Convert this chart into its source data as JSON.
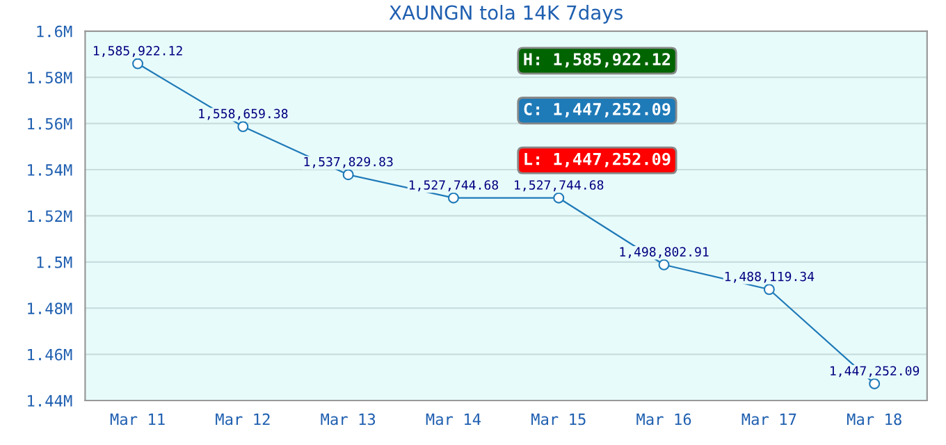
{
  "chart_data": {
    "type": "line",
    "title": "XAUNGN tola 14K 7days",
    "categories": [
      "Mar 11",
      "Mar 12",
      "Mar 13",
      "Mar 14",
      "Mar 15",
      "Mar 16",
      "Mar 17",
      "Mar 18"
    ],
    "series": [
      {
        "color": "#1f7ab8",
        "values": [
          1585922.12,
          1558659.38,
          1537829.83,
          1527744.68,
          1527744.68,
          1498802.91,
          1488119.34,
          1447252.09
        ],
        "value_labels": [
          "1,585,922.12",
          "1,558,659.38",
          "1,537,829.83",
          "1,527,744.68",
          "1,527,744.68",
          "1,498,802.91",
          "1,488,119.34",
          "1,447,252.09"
        ]
      }
    ],
    "ylim": [
      1440000,
      1600000
    ],
    "yticks": [
      {
        "value": 1440000,
        "label": "1.44M"
      },
      {
        "value": 1460000,
        "label": "1.46M"
      },
      {
        "value": 1480000,
        "label": "1.48M"
      },
      {
        "value": 1500000,
        "label": "1.5M"
      },
      {
        "value": 1520000,
        "label": "1.52M"
      },
      {
        "value": 1540000,
        "label": "1.54M"
      },
      {
        "value": 1560000,
        "label": "1.56M"
      },
      {
        "value": 1580000,
        "label": "1.58M"
      },
      {
        "value": 1600000,
        "label": "1.6M"
      }
    ],
    "annotations": [
      "H: 1,585,922.12",
      "C: 1,447,252.09",
      "L: 1,447,252.09"
    ],
    "grid": "y",
    "marker": "circle",
    "line_style": "solid",
    "legend": false
  }
}
